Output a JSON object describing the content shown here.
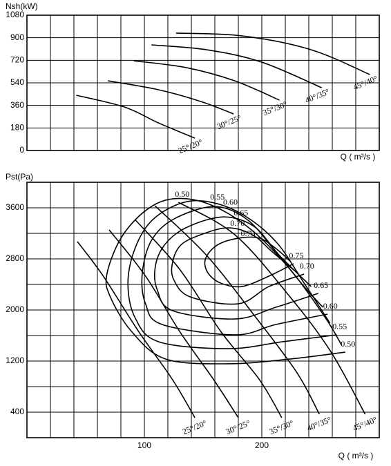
{
  "chart_data": [
    {
      "type": "line",
      "y_label": "Nsh(kW)",
      "x_label": "Q ( m³/s )",
      "color": "#000000",
      "xlim": [
        0,
        300
      ],
      "ylim": [
        0,
        1080
      ],
      "yticks": [
        0,
        180,
        360,
        540,
        720,
        900,
        1080
      ],
      "x_gridlines": [
        20,
        40,
        60,
        80,
        100,
        120,
        140,
        160,
        180,
        200,
        220,
        240,
        260,
        280
      ],
      "series": [
        {
          "name": "25°/20°",
          "x": [
            42,
            83,
            112,
            143
          ],
          "values": [
            441,
            347,
            220,
            99
          ]
        },
        {
          "name": "30°/25°",
          "x": [
            69,
            112,
            148,
            176
          ],
          "values": [
            556,
            485,
            391,
            292
          ]
        },
        {
          "name": "35°/30°",
          "x": [
            91,
            136,
            177,
            215
          ],
          "values": [
            716,
            661,
            556,
            402
          ]
        },
        {
          "name": "40°/35°",
          "x": [
            106,
            153,
            200,
            251
          ],
          "values": [
            843,
            804,
            705,
            501
          ]
        },
        {
          "name": "45°/40°",
          "x": [
            127,
            183,
            242,
            292
          ],
          "values": [
            937,
            915,
            804,
            606
          ]
        }
      ]
    },
    {
      "type": "line",
      "y_label": "Pst(Pa)",
      "x_label": "Q ( m³/s )",
      "color": "#000000",
      "xlim": [
        0,
        300
      ],
      "ylim": [
        0,
        4000
      ],
      "xticks": [
        100,
        200
      ],
      "yticks": [
        400,
        1200,
        2000,
        2800,
        3600
      ],
      "x_gridlines": [
        20,
        40,
        60,
        80,
        100,
        120,
        140,
        160,
        180,
        200,
        220,
        240,
        260,
        280
      ],
      "y_gridlines": [
        400,
        800,
        1200,
        1600,
        2000,
        2400,
        2800,
        3200,
        3600
      ],
      "series": [
        {
          "name": "25°/20°",
          "x": [
            43,
            65,
            95,
            124,
            143
          ],
          "values": [
            3070,
            2530,
            1665,
            908,
            313
          ]
        },
        {
          "name": "30°/25°",
          "x": [
            70,
            101,
            130,
            159,
            180
          ],
          "values": [
            3254,
            2530,
            1665,
            908,
            313
          ]
        },
        {
          "name": "35°/30°",
          "x": [
            92,
            130,
            165,
            198,
            217
          ],
          "values": [
            3416,
            2638,
            1665,
            908,
            313
          ]
        },
        {
          "name": "40°/35°",
          "x": [
            109,
            153,
            195,
            230,
            249
          ],
          "values": [
            3632,
            2854,
            1881,
            1016,
            367
          ]
        },
        {
          "name": "45°/40°",
          "x": [
            129,
            177,
            224,
            259,
            288
          ],
          "values": [
            3686,
            3178,
            2205,
            1340,
            367
          ]
        }
      ],
      "contours": [
        {
          "name": "0.50",
          "x": [
            271,
            224,
            171,
            118,
            89,
            71,
            68,
            80,
            101,
            124,
            154,
            189,
            224,
            254,
            268
          ],
          "values": [
            1340,
            1232,
            1157,
            1232,
            1665,
            2205,
            2551,
            3124,
            3556,
            3740,
            3665,
            3286,
            2638,
            1881,
            1449
          ]
        },
        {
          "name": "0.55",
          "x": [
            264,
            218,
            171,
            112,
            92,
            86,
            92,
            106,
            130,
            154,
            183,
            212,
            236,
            258
          ],
          "values": [
            1611,
            1503,
            1394,
            1503,
            1881,
            2421,
            2962,
            3394,
            3665,
            3697,
            3502,
            3070,
            2421,
            1795
          ]
        },
        {
          "name": "0.60",
          "x": [
            256,
            212,
            177,
            115,
            101,
            98,
            104,
            118,
            142,
            165,
            189,
            212,
            236,
            252
          ],
          "values": [
            1935,
            1773,
            1611,
            1773,
            2097,
            2530,
            3016,
            3340,
            3556,
            3611,
            3394,
            2908,
            2367,
            2043
          ]
        },
        {
          "name": "0.65",
          "x": [
            248,
            212,
            177,
            124,
            111,
            109,
            115,
            130,
            154,
            174,
            195,
            215,
            242
          ],
          "values": [
            2259,
            2043,
            1859,
            1989,
            2313,
            2638,
            2962,
            3232,
            3416,
            3448,
            3286,
            2854,
            2367
          ]
        },
        {
          "name": "0.70",
          "x": [
            236,
            206,
            180,
            139,
            125,
            124,
            131,
            148,
            171,
            192,
            209,
            230
          ],
          "values": [
            2562,
            2367,
            2097,
            2205,
            2475,
            2746,
            3016,
            3178,
            3286,
            3178,
            2908,
            2584
          ]
        },
        {
          "name": "0.75",
          "x": [
            227,
            206,
            183,
            165,
            154,
            152,
            162,
            180,
            198,
            212,
            224
          ],
          "values": [
            2724,
            2530,
            2367,
            2421,
            2584,
            2800,
            3016,
            3124,
            3124,
            2962,
            2767
          ]
        }
      ]
    }
  ]
}
